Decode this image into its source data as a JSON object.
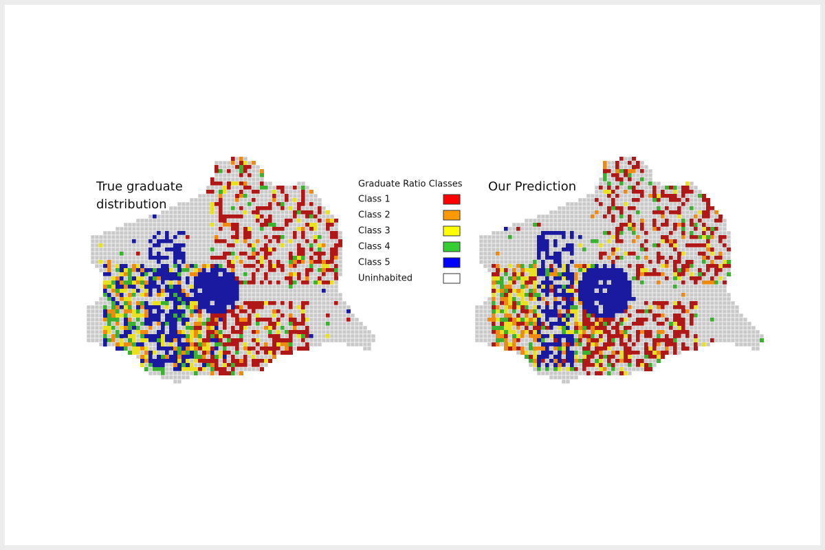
{
  "maps": [
    {
      "title": "True graduate distribution"
    },
    {
      "title": "Our Prediction"
    }
  ],
  "legend": {
    "title": "Graduate Ratio Classes",
    "items": [
      {
        "label": "Class 1",
        "color": "#ff0000"
      },
      {
        "label": "Class 2",
        "color": "#ff9900"
      },
      {
        "label": "Class 3",
        "color": "#ffff00"
      },
      {
        "label": "Class 4",
        "color": "#33cc33"
      },
      {
        "label": "Class 5",
        "color": "#0000ff"
      },
      {
        "label": "Uninhabited",
        "color": "#ffffff"
      }
    ]
  }
}
